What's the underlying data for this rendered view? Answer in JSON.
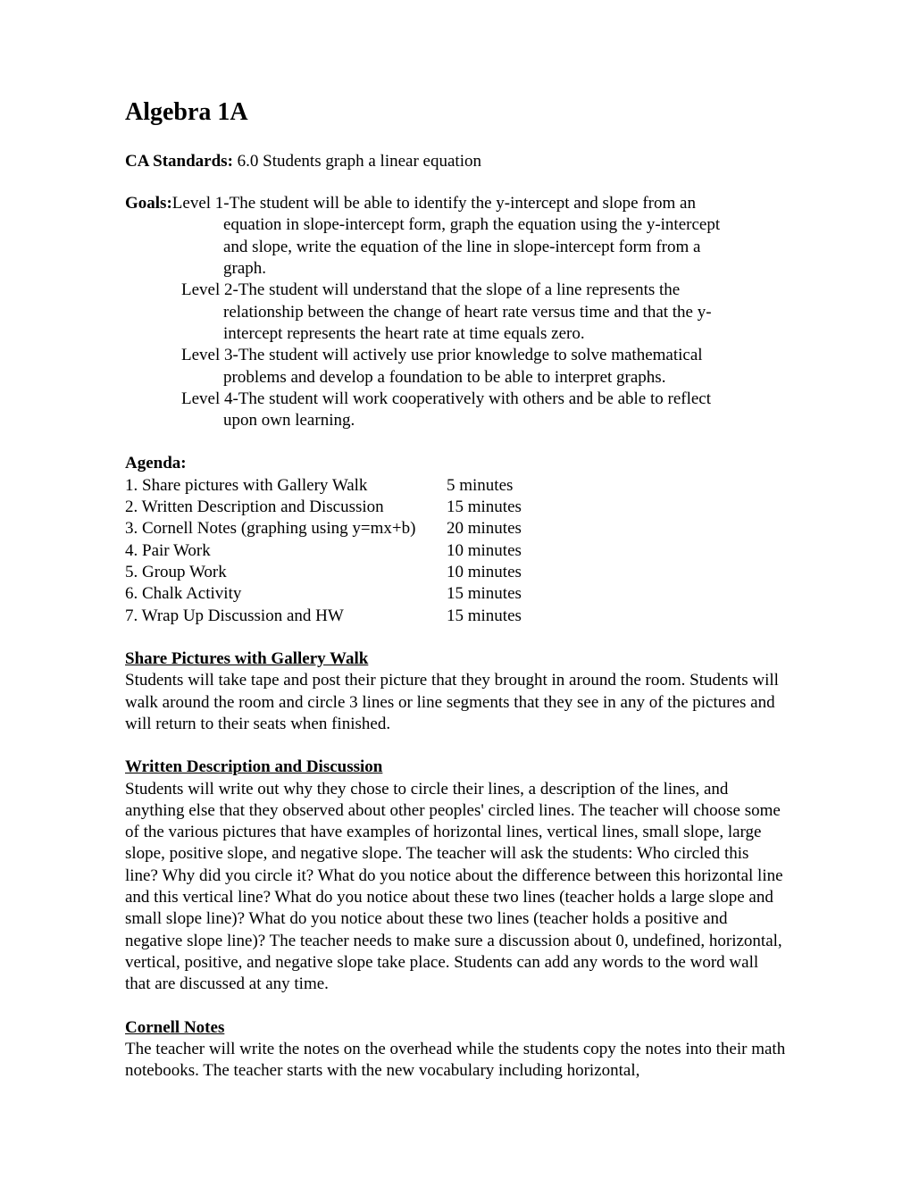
{
  "title": "Algebra 1A",
  "standards": {
    "label": "CA Standards:",
    "text": " 6.0 Students graph a linear equation"
  },
  "goals": {
    "label": "Goals:",
    "level1_line1": " Level 1-The student will be able to identify the y-intercept and slope from an",
    "level1_line2": "equation in slope-intercept form, graph the equation using the y-intercept",
    "level1_line3": "and slope, write the equation of the line in slope-intercept form from a",
    "level1_line4": "graph.",
    "level2_line1": "Level 2-The student will understand that the slope of a line represents the",
    "level2_line2": "relationship between the change of heart rate versus time and that the y-",
    "level2_line3": "intercept represents the heart rate at time equals zero.",
    "level3_line1": "Level 3-The student will actively use prior knowledge to solve mathematical",
    "level3_line2": "problems and develop a foundation to be able to interpret graphs.",
    "level4_line1": "Level 4-The student will work cooperatively with others and be able to reflect",
    "level4_line2": "upon own learning."
  },
  "agenda": {
    "header": "Agenda:",
    "items": [
      {
        "label": "1. Share pictures with Gallery Walk",
        "time": "5 minutes"
      },
      {
        "label": "2. Written Description and Discussion",
        "time": "15 minutes"
      },
      {
        "label": "3. Cornell Notes (graphing using y=mx+b)",
        "time": "20 minutes"
      },
      {
        "label": "4. Pair Work",
        "time": "10 minutes"
      },
      {
        "label": "5. Group Work",
        "time": "10 minutes"
      },
      {
        "label": "6. Chalk Activity",
        "time": "15 minutes"
      },
      {
        "label": "7. Wrap Up Discussion and HW",
        "time": "15 minutes"
      }
    ]
  },
  "sections": {
    "gallery": {
      "header": "Share Pictures with Gallery Walk",
      "body": "Students will take tape and post their picture that they brought in around the room. Students will walk around the room and circle 3 lines or line segments that they see in any of the pictures and will return to their seats when finished."
    },
    "written": {
      "header": "Written Description and Discussion",
      "body": "Students will write out why they chose to circle their lines, a description of the lines, and anything else that they observed about other peoples' circled lines. The teacher will choose some of the various pictures that have examples of horizontal lines, vertical lines, small slope, large slope, positive slope, and negative slope. The teacher will ask the students: Who circled this line? Why did you circle it? What do you notice about the difference between this horizontal line and this vertical line? What do you notice about these two lines (teacher holds a large slope and small slope line)? What do you notice about these two lines (teacher holds a positive and negative slope line)? The teacher needs to make sure a discussion about 0, undefined, horizontal, vertical, positive, and negative slope take place. Students can add any words to the word wall that are discussed at any time."
    },
    "cornell": {
      "header": "Cornell Notes",
      "body": "The teacher will write the notes on the overhead while the students copy the notes into their math notebooks. The teacher starts with the new vocabulary including horizontal,"
    }
  }
}
